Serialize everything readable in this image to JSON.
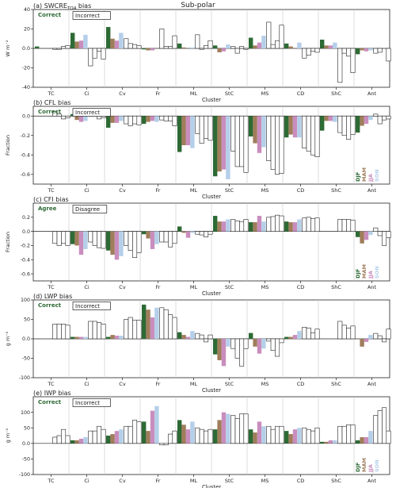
{
  "figure": {
    "title": "Sub-polar",
    "colors": {
      "DJF": "#2d6a34",
      "MAM": "#a07d5b",
      "JJA": "#c98dbd",
      "SON": "#b5cfe9",
      "correct_text": "#2d6a34"
    }
  },
  "chart_data": [
    {
      "type": "bar",
      "title": "(a) SWCRE_TOA bias",
      "title_main": "(a) SWCRE",
      "title_sub": "TOA",
      "title_end": " bias",
      "ylabel": "W m⁻²",
      "xlabel": "Cluster",
      "ylim": [
        -40,
        40
      ],
      "yticks": [
        -40,
        -20,
        0,
        20,
        40
      ],
      "legend_left": "Correct",
      "legend_right": "Incorrect",
      "show_seasons": false,
      "categories": [
        "TC",
        "Ci",
        "Cv",
        "Fr",
        "ML",
        "StC",
        "MS",
        "CD",
        "ShC",
        "Ant"
      ],
      "series": [
        {
          "name": "DJF",
          "correct": [
            2,
            16,
            22,
            -1,
            5,
            3,
            11,
            5,
            9,
            -6
          ],
          "incorrect": [
            -1,
            -18,
            10,
            20,
            14,
            2,
            27,
            -10,
            -35,
            -5
          ]
        },
        {
          "name": "MAM",
          "correct": [
            0,
            7,
            10,
            -2,
            1,
            -4,
            3,
            2,
            3,
            -2
          ],
          "incorrect": [
            -1,
            -10,
            5,
            2,
            -1,
            -5,
            4,
            -7,
            -5,
            -4
          ]
        },
        {
          "name": "JJA",
          "correct": [
            0,
            8,
            8,
            -2,
            0,
            -3,
            6,
            0,
            3,
            -3
          ],
          "incorrect": [
            2,
            -3,
            4,
            2,
            3,
            2,
            8,
            -3,
            -8,
            0
          ]
        },
        {
          "name": "SON",
          "correct": [
            0,
            14,
            16,
            0,
            1,
            4,
            13,
            6,
            6,
            -2
          ],
          "incorrect": [
            3,
            -11,
            3,
            13,
            8,
            -1,
            24,
            -4,
            -25,
            -13
          ]
        }
      ]
    },
    {
      "type": "bar",
      "title": "(b) CFL bias",
      "title_main": "(b) CFL bias",
      "title_sub": "",
      "title_end": "",
      "ylabel": "Fraction",
      "xlabel": "Cluster",
      "ylim": [
        -0.7,
        0.1
      ],
      "yticks": [
        -0.6,
        -0.4,
        -0.2,
        0.0
      ],
      "legend_left": "Correct",
      "legend_right": "Incorrect",
      "show_seasons": true,
      "categories": [
        "TC",
        "Ci",
        "Cv",
        "Fr",
        "ML",
        "StC",
        "MS",
        "CD",
        "ShC",
        "Ant"
      ],
      "series": [
        {
          "name": "DJF",
          "correct": [
            0,
            0.02,
            -0.12,
            -0.08,
            -0.37,
            -0.62,
            -0.21,
            -0.22,
            -0.15,
            -0.17
          ],
          "incorrect": [
            0.05,
            0.07,
            -0.08,
            -0.04,
            -0.18,
            -0.36,
            -0.46,
            -0.33,
            -0.17,
            0.02
          ]
        },
        {
          "name": "MAM",
          "correct": [
            0,
            -0.04,
            -0.07,
            -0.06,
            -0.3,
            -0.57,
            -0.28,
            -0.19,
            -0.05,
            -0.1
          ],
          "incorrect": [
            0.02,
            0.01,
            -0.1,
            -0.05,
            -0.28,
            -0.52,
            -0.55,
            -0.36,
            -0.2,
            -0.08
          ]
        },
        {
          "name": "JJA",
          "correct": [
            0,
            -0.06,
            -0.07,
            -0.05,
            -0.3,
            -0.55,
            -0.38,
            -0.22,
            -0.05,
            -0.08
          ],
          "incorrect": [
            -0.03,
            -0.03,
            -0.08,
            -0.05,
            -0.23,
            -0.52,
            -0.6,
            -0.4,
            -0.24,
            -0.04
          ]
        },
        {
          "name": "SON",
          "correct": [
            0,
            -0.05,
            -0.05,
            -0.06,
            -0.33,
            -0.65,
            -0.32,
            -0.22,
            -0.06,
            -0.04
          ],
          "incorrect": [
            -0.02,
            -0.02,
            -0.09,
            -0.1,
            -0.25,
            -0.58,
            -0.59,
            -0.42,
            -0.19,
            -0.03
          ]
        }
      ]
    },
    {
      "type": "bar",
      "title": "(c) CFI bias",
      "title_main": "(c) CFI bias",
      "title_sub": "",
      "title_end": "",
      "ylabel": "Fraction",
      "xlabel": "Cluster",
      "ylim": [
        -0.7,
        0.4
      ],
      "yticks": [
        -0.6,
        -0.4,
        -0.2,
        0.0,
        0.2
      ],
      "legend_left": "Agree",
      "legend_right": "Disagree",
      "show_seasons": true,
      "categories": [
        "TC",
        "Ci",
        "Cv",
        "Fr",
        "ML",
        "StC",
        "MS",
        "CD",
        "ShC",
        "Ant"
      ],
      "series": [
        {
          "name": "DJF",
          "correct": [
            0,
            -0.18,
            -0.27,
            -0.04,
            0.07,
            0.22,
            0.13,
            0.14,
            0,
            -0.08
          ],
          "incorrect": [
            -0.17,
            -0.15,
            -0.2,
            -0.15,
            -0.04,
            0.17,
            0.2,
            0.19,
            0.17,
            0.05
          ]
        },
        {
          "name": "MAM",
          "correct": [
            0,
            -0.2,
            -0.33,
            -0.1,
            -0.02,
            0.14,
            0.13,
            0.13,
            0,
            -0.17
          ],
          "incorrect": [
            -0.2,
            -0.2,
            -0.27,
            -0.15,
            -0.05,
            0.15,
            0.21,
            0.2,
            0.17,
            -0.06
          ]
        },
        {
          "name": "JJA",
          "correct": [
            0,
            -0.33,
            -0.4,
            -0.25,
            -0.09,
            0.14,
            0.22,
            0.13,
            0,
            -0.12
          ],
          "incorrect": [
            -0.17,
            -0.23,
            -0.37,
            -0.22,
            -0.08,
            0.14,
            0.23,
            0.18,
            0.17,
            -0.2
          ]
        },
        {
          "name": "SON",
          "correct": [
            0,
            -0.25,
            -0.35,
            -0.18,
            -0.02,
            0.17,
            0.14,
            0.17,
            0,
            -0.05
          ],
          "incorrect": [
            -0.2,
            -0.24,
            -0.3,
            -0.17,
            -0.04,
            0.17,
            0.22,
            0.19,
            0.16,
            -0.09
          ]
        }
      ]
    },
    {
      "type": "bar",
      "title": "(d) LWP bias",
      "title_main": "(d) LWP bias",
      "title_sub": "",
      "title_end": "",
      "ylabel": "g m⁻²",
      "xlabel": "Cluster",
      "ylim": [
        -100,
        100
      ],
      "yticks": [
        -100,
        -50,
        0,
        50,
        100
      ],
      "legend_left": "Correct",
      "legend_right": "Incorrect",
      "show_seasons": false,
      "categories": [
        "TC",
        "Ci",
        "Cv",
        "Fr",
        "ML",
        "StC",
        "MS",
        "CD",
        "ShC",
        "Ant"
      ],
      "series": [
        {
          "name": "DJF",
          "correct": [
            0,
            5,
            5,
            88,
            17,
            -40,
            15,
            5,
            0,
            0
          ],
          "incorrect": [
            38,
            45,
            50,
            80,
            14,
            -25,
            -6,
            30,
            45,
            14
          ]
        },
        {
          "name": "MAM",
          "correct": [
            0,
            5,
            10,
            75,
            10,
            -55,
            -20,
            5,
            0,
            -20
          ],
          "incorrect": [
            38,
            45,
            55,
            75,
            10,
            -50,
            -30,
            28,
            35,
            8
          ]
        },
        {
          "name": "JJA",
          "correct": [
            0,
            5,
            8,
            55,
            5,
            -70,
            -38,
            10,
            0,
            -8
          ],
          "incorrect": [
            38,
            42,
            48,
            62,
            -8,
            -70,
            -45,
            15,
            28,
            -8
          ]
        },
        {
          "name": "SON",
          "correct": [
            0,
            5,
            8,
            80,
            20,
            -20,
            -25,
            20,
            0,
            10
          ],
          "incorrect": [
            35,
            38,
            48,
            55,
            10,
            -25,
            -10,
            25,
            33,
            25
          ]
        }
      ]
    },
    {
      "type": "bar",
      "title": "(e) IWP bias",
      "title_main": "(e) IWP bias",
      "title_sub": "",
      "title_end": "",
      "ylabel": "g m⁻²",
      "xlabel": "Cluster",
      "ylim": [
        -100,
        150
      ],
      "yticks": [
        -100,
        -50,
        0,
        50,
        100
      ],
      "legend_left": "Correct",
      "legend_right": "Incorrect",
      "show_seasons": true,
      "categories": [
        "TC",
        "Ci",
        "Cv",
        "Fr",
        "ML",
        "StC",
        "MS",
        "CD",
        "ShC",
        "Ant"
      ],
      "series": [
        {
          "name": "DJF",
          "correct": [
            0,
            10,
            25,
            70,
            75,
            45,
            45,
            40,
            5,
            10
          ],
          "incorrect": [
            20,
            40,
            55,
            -5,
            50,
            90,
            55,
            50,
            55,
            90
          ]
        },
        {
          "name": "MAM",
          "correct": [
            0,
            10,
            30,
            40,
            60,
            75,
            35,
            30,
            5,
            20
          ],
          "incorrect": [
            25,
            40,
            55,
            -5,
            45,
            80,
            45,
            45,
            55,
            105
          ]
        },
        {
          "name": "JJA",
          "correct": [
            0,
            15,
            40,
            105,
            45,
            100,
            70,
            45,
            10,
            20
          ],
          "incorrect": [
            45,
            55,
            75,
            30,
            40,
            95,
            55,
            40,
            60,
            115
          ]
        },
        {
          "name": "SON",
          "correct": [
            0,
            20,
            45,
            120,
            70,
            95,
            55,
            50,
            10,
            40
          ],
          "incorrect": [
            25,
            45,
            70,
            40,
            45,
            95,
            55,
            50,
            60,
            40
          ]
        }
      ]
    }
  ]
}
